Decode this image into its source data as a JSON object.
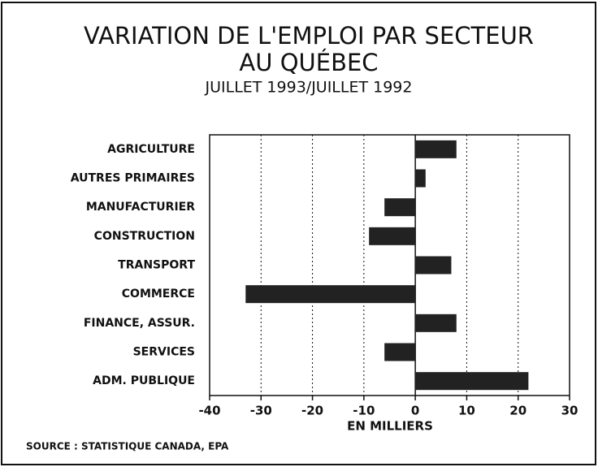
{
  "chart_data": {
    "type": "hbar",
    "title": [
      "VARIATION DE L'EMPLOI PAR SECTEUR",
      "AU QUÉBEC"
    ],
    "subtitle": "JUILLET 1993/JUILLET 1992",
    "x_label": "EN MILLIERS",
    "source": "SOURCE : STATISTIQUE CANADA, EPA",
    "categories": [
      "AGRICULTURE",
      "AUTRES PRIMAIRES",
      "MANUFACTURIER",
      "CONSTRUCTION",
      "TRANSPORT",
      "COMMERCE",
      "FINANCE, ASSUR.",
      "SERVICES",
      "ADM. PUBLIQUE"
    ],
    "values": [
      8,
      2,
      -6,
      -9,
      7,
      -33,
      8,
      -6,
      22
    ],
    "color": "#222222",
    "xlim": [
      -40,
      30
    ],
    "xticks": [
      -40,
      -30,
      -20,
      -10,
      0,
      10,
      20,
      30
    ],
    "grid": true
  }
}
